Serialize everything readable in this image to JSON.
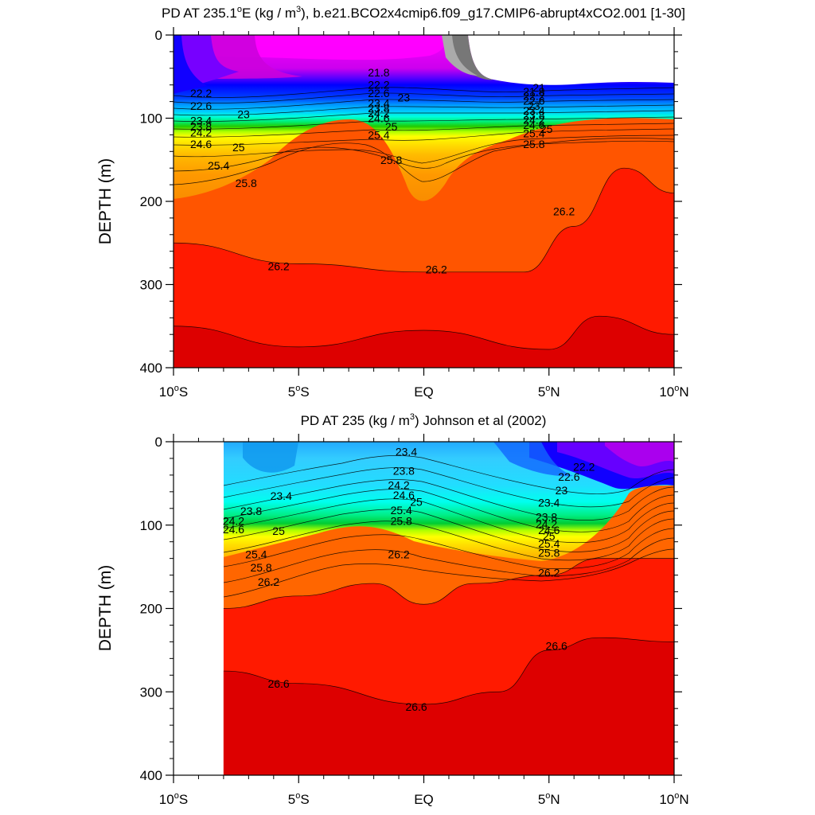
{
  "chart_data": [
    {
      "type": "contour",
      "title": "PD AT 235.1°E (kg / m³), b.e21.BCO2x4cmip6.f09_g17.CMIP6-abrupt4xCO2.001 [1-30]",
      "title_pre": "PD AT 235.1",
      "title_sup1": "o",
      "title_mid": "E (kg / m",
      "title_sup2": "3",
      "title_post": "), b.e21.BCO2x4cmip6.f09_g17.CMIP6-abrupt4xCO2.001 [1-30]",
      "ylabel": "DEPTH (m)",
      "xlabel": "",
      "x_range": [
        -10,
        10
      ],
      "y_range": [
        0,
        400
      ],
      "y_inverted": true,
      "x_ticks": [
        {
          "value": -10,
          "num": "10",
          "sup": "o",
          "hem": "S"
        },
        {
          "value": -5,
          "num": "5",
          "sup": "o",
          "hem": "S"
        },
        {
          "value": 0,
          "num": "EQ",
          "sup": "",
          "hem": ""
        },
        {
          "value": 5,
          "num": "5",
          "sup": "o",
          "hem": "N"
        },
        {
          "value": 10,
          "num": "10",
          "sup": "o",
          "hem": "N"
        }
      ],
      "y_ticks": [
        "0",
        "100",
        "200",
        "300",
        "400"
      ],
      "y_tick_values": [
        0,
        100,
        200,
        300,
        400
      ],
      "valid_x_range": [
        -10,
        10
      ],
      "no_data_region": "upper right, east of ~1.7°N above ~60 m",
      "contour_interval": 0.2,
      "contour_labels": [
        {
          "text": "21.8",
          "x": -1.8,
          "y": 45
        },
        {
          "text": "22.2",
          "x": -1.8,
          "y": 60
        },
        {
          "text": "22.6",
          "x": -1.8,
          "y": 70
        },
        {
          "text": "23",
          "x": -0.8,
          "y": 75
        },
        {
          "text": "23.4",
          "x": -1.8,
          "y": 82
        },
        {
          "text": "23.8",
          "x": -1.8,
          "y": 88
        },
        {
          "text": "24.2",
          "x": -1.8,
          "y": 94
        },
        {
          "text": "24.6",
          "x": -1.8,
          "y": 100
        },
        {
          "text": "25",
          "x": -1.3,
          "y": 110
        },
        {
          "text": "25.4",
          "x": -1.8,
          "y": 120
        },
        {
          "text": "25.8",
          "x": -1.3,
          "y": 150
        },
        {
          "text": "22.2",
          "x": -8.9,
          "y": 70
        },
        {
          "text": "22.6",
          "x": -8.9,
          "y": 85
        },
        {
          "text": "23",
          "x": -7.2,
          "y": 95
        },
        {
          "text": "23.4",
          "x": -8.9,
          "y": 103
        },
        {
          "text": "23.8",
          "x": -8.9,
          "y": 110
        },
        {
          "text": "24.2",
          "x": -8.9,
          "y": 117
        },
        {
          "text": "24.6",
          "x": -8.9,
          "y": 131
        },
        {
          "text": "25",
          "x": -7.4,
          "y": 135
        },
        {
          "text": "25.4",
          "x": -8.2,
          "y": 157
        },
        {
          "text": "25.8",
          "x": -7.1,
          "y": 178
        },
        {
          "text": "21",
          "x": 4.6,
          "y": 63
        },
        {
          "text": "21.8",
          "x": 4.4,
          "y": 68
        },
        {
          "text": "22.2",
          "x": 4.4,
          "y": 73
        },
        {
          "text": "22.6",
          "x": 4.4,
          "y": 79
        },
        {
          "text": "23",
          "x": 4.4,
          "y": 85
        },
        {
          "text": "23.4",
          "x": 4.4,
          "y": 91
        },
        {
          "text": "23.8",
          "x": 4.4,
          "y": 96
        },
        {
          "text": "24.2",
          "x": 4.4,
          "y": 102
        },
        {
          "text": "24.6",
          "x": 4.4,
          "y": 108
        },
        {
          "text": "25",
          "x": 4.9,
          "y": 113
        },
        {
          "text": "25.4",
          "x": 4.4,
          "y": 118
        },
        {
          "text": "25.8",
          "x": 4.4,
          "y": 131
        },
        {
          "text": "26.2",
          "x": -5.8,
          "y": 278
        },
        {
          "text": "26.2",
          "x": 0.5,
          "y": 282
        },
        {
          "text": "26.2",
          "x": 5.6,
          "y": 212
        }
      ],
      "bands": [
        {
          "top": [
            [
              -10,
              0
            ],
            [
              10,
              0
            ]
          ],
          "fill": "#ff00ff",
          "note": "near-surface low density"
        },
        {
          "top": [
            [
              -10,
              80
            ],
            [
              10,
              80
            ]
          ],
          "fill": "#00ff00"
        },
        {
          "top": [
            [
              -10,
              250
            ],
            [
              -5,
              275
            ],
            [
              0,
              285
            ],
            [
              4,
              285
            ],
            [
              6,
              230
            ],
            [
              8,
              160
            ],
            [
              10,
              190
            ]
          ],
          "fill": "#ff1a00",
          "value": 26.2
        },
        {
          "top": [
            [
              -10,
              350
            ],
            [
              -5,
              375
            ],
            [
              0,
              355
            ],
            [
              5,
              378
            ],
            [
              7,
              338
            ],
            [
              10,
              360
            ]
          ],
          "fill": "#dd0000"
        }
      ]
    },
    {
      "type": "contour",
      "title": "PD AT 235 (kg / m³) Johnson et al (2002)",
      "title_pre": "PD AT 235 (kg / m",
      "title_sup1": "3",
      "title_post": ") Johnson et al (2002)",
      "ylabel": "DEPTH (m)",
      "xlabel": "",
      "x_range": [
        -10,
        10
      ],
      "y_range": [
        0,
        400
      ],
      "y_inverted": true,
      "x_ticks": [
        {
          "value": -10,
          "num": "10",
          "sup": "o",
          "hem": "S"
        },
        {
          "value": -5,
          "num": "5",
          "sup": "o",
          "hem": "S"
        },
        {
          "value": 0,
          "num": "EQ",
          "sup": "",
          "hem": ""
        },
        {
          "value": 5,
          "num": "5",
          "sup": "o",
          "hem": "N"
        },
        {
          "value": 10,
          "num": "10",
          "sup": "o",
          "hem": "N"
        }
      ],
      "y_ticks": [
        "0",
        "100",
        "200",
        "300",
        "400"
      ],
      "y_tick_values": [
        0,
        100,
        200,
        300,
        400
      ],
      "valid_x_range": [
        -8,
        10
      ],
      "contour_interval": 0.2,
      "contour_labels": [
        {
          "text": "23.4",
          "x": -0.7,
          "y": 12
        },
        {
          "text": "23.8",
          "x": -0.8,
          "y": 35
        },
        {
          "text": "24.2",
          "x": -1.0,
          "y": 52
        },
        {
          "text": "24.6",
          "x": -0.8,
          "y": 64
        },
        {
          "text": "25",
          "x": -0.3,
          "y": 72
        },
        {
          "text": "25.4",
          "x": -0.9,
          "y": 82
        },
        {
          "text": "25.8",
          "x": -0.9,
          "y": 95
        },
        {
          "text": "26.2",
          "x": -1.0,
          "y": 135
        },
        {
          "text": "23.4",
          "x": -5.7,
          "y": 65
        },
        {
          "text": "23.8",
          "x": -6.9,
          "y": 83
        },
        {
          "text": "24.2",
          "x": -7.6,
          "y": 95
        },
        {
          "text": "24.6",
          "x": -7.6,
          "y": 105
        },
        {
          "text": "25",
          "x": -5.8,
          "y": 107
        },
        {
          "text": "25.4",
          "x": -6.7,
          "y": 135
        },
        {
          "text": "25.8",
          "x": -6.5,
          "y": 151
        },
        {
          "text": "26.2",
          "x": -6.2,
          "y": 168
        },
        {
          "text": "22.2",
          "x": 6.4,
          "y": 30
        },
        {
          "text": "22.6",
          "x": 5.8,
          "y": 42
        },
        {
          "text": "23",
          "x": 5.5,
          "y": 58
        },
        {
          "text": "23.4",
          "x": 5.0,
          "y": 73
        },
        {
          "text": "23.8",
          "x": 4.9,
          "y": 90
        },
        {
          "text": "24.2",
          "x": 4.9,
          "y": 99
        },
        {
          "text": "24.6",
          "x": 5.0,
          "y": 106
        },
        {
          "text": "25",
          "x": 5.0,
          "y": 113
        },
        {
          "text": "25.4",
          "x": 5.0,
          "y": 122
        },
        {
          "text": "25.8",
          "x": 5.0,
          "y": 133
        },
        {
          "text": "26.2",
          "x": 5.0,
          "y": 157
        },
        {
          "text": "26.6",
          "x": -5.8,
          "y": 290
        },
        {
          "text": "26.6",
          "x": -0.3,
          "y": 318
        },
        {
          "text": "26.6",
          "x": 5.3,
          "y": 245
        }
      ],
      "bands": [
        {
          "top": [
            [
              -8,
              0
            ],
            [
              10,
              0
            ]
          ],
          "fill": "#33ddff",
          "note": "near-surface"
        },
        {
          "top": [
            [
              -8,
              95
            ],
            [
              -6,
              100
            ],
            [
              -4,
              90
            ],
            [
              -2,
              75
            ],
            [
              0,
              85
            ],
            [
              2,
              95
            ],
            [
              4,
              105
            ],
            [
              5,
              110
            ],
            [
              7,
              90
            ],
            [
              8,
              55
            ],
            [
              10,
              60
            ]
          ],
          "fill": "#00ff00"
        },
        {
          "top": [
            [
              -8,
              200
            ],
            [
              -5,
              185
            ],
            [
              -2,
              170
            ],
            [
              0,
              195
            ],
            [
              2,
              170
            ],
            [
              5,
              160
            ],
            [
              7,
              140
            ],
            [
              10,
              140
            ]
          ],
          "fill": "#ff1a00",
          "value": 26.2
        },
        {
          "top": [
            [
              -8,
              275
            ],
            [
              -5,
              290
            ],
            [
              0,
              315
            ],
            [
              3,
              300
            ],
            [
              5,
              250
            ],
            [
              7,
              235
            ],
            [
              10,
              240
            ]
          ],
          "fill": "#dd0000",
          "value": 26.6
        }
      ]
    }
  ]
}
